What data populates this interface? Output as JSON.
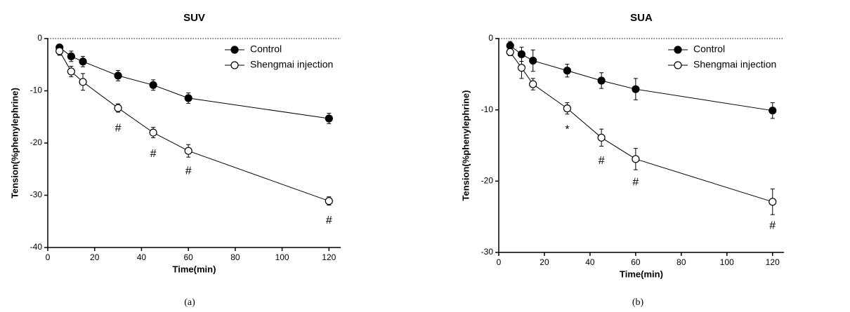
{
  "chart_data": [
    {
      "type": "line",
      "title": "SUV",
      "xlabel": "Time(min)",
      "ylabel": "Tension(%phenylephrine)",
      "caption": "(a)",
      "x": [
        5,
        10,
        15,
        30,
        45,
        60,
        120
      ],
      "xlim": [
        0,
        125
      ],
      "xticks": [
        0,
        20,
        40,
        60,
        80,
        100,
        120
      ],
      "ylim": [
        -40,
        0
      ],
      "yticks": [
        -40,
        -30,
        -20,
        -10,
        0
      ],
      "legend": "upper right",
      "series": [
        {
          "name": "Control",
          "color": "#000000",
          "marker": "filled",
          "values": [
            -1.7,
            -3.4,
            -4.4,
            -7.1,
            -8.9,
            -11.4,
            -15.3
          ],
          "errors": [
            0.6,
            1.0,
            1.0,
            1.0,
            1.0,
            1.0,
            1.0
          ]
        },
        {
          "name": "Shengmai injection",
          "color": "#000000",
          "marker": "open",
          "values": [
            -2.4,
            -6.3,
            -8.3,
            -13.3,
            -18.0,
            -21.5,
            -31.1
          ],
          "errors": [
            0.8,
            1.0,
            1.6,
            0.8,
            1.0,
            1.2,
            0.8
          ]
        }
      ],
      "annotations": [
        {
          "text": "#",
          "x": 30,
          "y": -17.2
        },
        {
          "text": "#",
          "x": 45,
          "y": -22.1
        },
        {
          "text": "#",
          "x": 60,
          "y": -25.4
        },
        {
          "text": "#",
          "x": 120,
          "y": -34.9
        }
      ]
    },
    {
      "type": "line",
      "title": "SUA",
      "xlabel": "Time(min)",
      "ylabel": "Tension(%phenylephrine)",
      "caption": "(b)",
      "x": [
        5,
        10,
        15,
        30,
        45,
        60,
        120
      ],
      "xlim": [
        0,
        125
      ],
      "xticks": [
        0,
        20,
        40,
        60,
        80,
        100,
        120
      ],
      "ylim": [
        -30,
        0
      ],
      "yticks": [
        -30,
        -20,
        -10,
        0
      ],
      "legend": "upper right",
      "series": [
        {
          "name": "Control",
          "color": "#000000",
          "marker": "filled",
          "values": [
            -1.0,
            -2.2,
            -3.1,
            -4.5,
            -5.9,
            -7.1,
            -10.1
          ],
          "errors": [
            0.6,
            1.0,
            1.5,
            0.9,
            1.1,
            1.5,
            1.1
          ]
        },
        {
          "name": "Shengmai injection",
          "color": "#000000",
          "marker": "open",
          "values": [
            -1.9,
            -4.1,
            -6.4,
            -9.8,
            -13.9,
            -16.9,
            -22.9
          ],
          "errors": [
            0.5,
            1.5,
            0.8,
            0.8,
            1.2,
            1.5,
            1.8
          ]
        }
      ],
      "annotations": [
        {
          "text": "*",
          "x": 30,
          "y": -12.8
        },
        {
          "text": "#",
          "x": 45,
          "y": -17.2
        },
        {
          "text": "#",
          "x": 60,
          "y": -20.2
        },
        {
          "text": "#",
          "x": 120,
          "y": -26.3
        }
      ]
    }
  ]
}
